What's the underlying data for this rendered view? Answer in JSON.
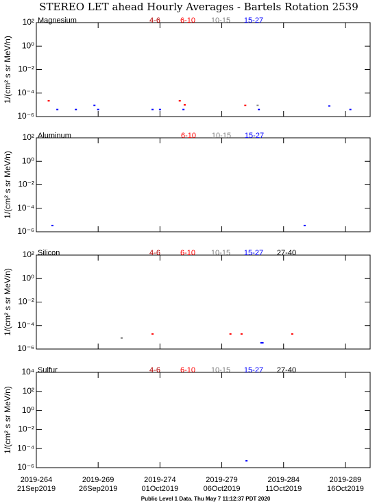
{
  "title": "STEREO LET ahead Hourly Averages - Bartels Rotation 2539",
  "footer": "Public Level 1 Data. Thu May  7 11:12:37 PDT 2020",
  "chart_data": [
    {
      "type": "scatter",
      "title": "Magnesium",
      "ylabel": "1/(cm² s sr MeV/n)",
      "log_y": true,
      "xlim": [
        264,
        291
      ],
      "ylim": [
        1e-06,
        100
      ],
      "yticks": [
        {
          "value": 100,
          "label": "10²"
        },
        {
          "value": 1,
          "label": "10⁰"
        },
        {
          "value": 0.01,
          "label": "10⁻²"
        },
        {
          "value": 0.0001,
          "label": "10⁻⁴"
        },
        {
          "value": 1e-06,
          "label": "10⁻⁶"
        }
      ],
      "series": [
        {
          "name": "4-6",
          "color": "#b00000",
          "x": [],
          "values": []
        },
        {
          "name": "6-10",
          "color": "#ff0000",
          "x": [
            265.0,
            275.6,
            276.0,
            280.9
          ],
          "values": [
            2.2e-05,
            2.2e-05,
            1e-05,
            9e-06
          ]
        },
        {
          "name": "10-15",
          "color": "#808080",
          "x": [
            281.9
          ],
          "values": [
            9e-06
          ]
        },
        {
          "name": "15-27",
          "color": "#0000ff",
          "x": [
            265.7,
            267.2,
            268.7,
            269.0,
            273.4,
            274.0,
            275.9,
            282.0,
            287.7,
            289.4
          ],
          "values": [
            4e-06,
            4e-06,
            9e-06,
            4e-06,
            4e-06,
            4e-06,
            4e-06,
            4e-06,
            8e-06,
            4e-06
          ]
        }
      ]
    },
    {
      "type": "scatter",
      "title": "Aluminum",
      "ylabel": "1/(cm² s sr MeV/n)",
      "log_y": true,
      "xlim": [
        264,
        291
      ],
      "ylim": [
        1e-06,
        100
      ],
      "yticks": [
        {
          "value": 100,
          "label": "10²"
        },
        {
          "value": 1,
          "label": "10⁰"
        },
        {
          "value": 0.01,
          "label": "10⁻²"
        },
        {
          "value": 0.0001,
          "label": "10⁻⁴"
        },
        {
          "value": 1e-06,
          "label": "10⁻⁶"
        }
      ],
      "series": [
        {
          "name": "6-10",
          "color": "#ff0000",
          "x": [],
          "values": []
        },
        {
          "name": "10-15",
          "color": "#808080",
          "x": [],
          "values": []
        },
        {
          "name": "15-27",
          "color": "#0000ff",
          "x": [
            265.3,
            285.7
          ],
          "values": [
            3.4e-06,
            3.4e-06
          ]
        }
      ]
    },
    {
      "type": "scatter",
      "title": "Silicon",
      "ylabel": "1/(cm² s sr MeV/n)",
      "log_y": true,
      "xlim": [
        264,
        291
      ],
      "ylim": [
        1e-06,
        100
      ],
      "yticks": [
        {
          "value": 100,
          "label": "10²"
        },
        {
          "value": 1,
          "label": "10⁰"
        },
        {
          "value": 0.01,
          "label": "10⁻²"
        },
        {
          "value": 0.0001,
          "label": "10⁻⁴"
        },
        {
          "value": 1e-06,
          "label": "10⁻⁶"
        }
      ],
      "series": [
        {
          "name": "4-6",
          "color": "#b00000",
          "x": [],
          "values": []
        },
        {
          "name": "6-10",
          "color": "#ff0000",
          "x": [
            273.4,
            279.7,
            280.6,
            284.7
          ],
          "values": [
            1.9e-05,
            1.9e-05,
            1.9e-05,
            1.9e-05
          ]
        },
        {
          "name": "10-15",
          "color": "#808080",
          "x": [
            270.9
          ],
          "values": [
            8.7e-06
          ]
        },
        {
          "name": "15-27",
          "color": "#0000ff",
          "x": [
            282.2,
            282.3
          ],
          "values": [
            3.4e-06,
            3.4e-06
          ]
        },
        {
          "name": "27-40",
          "color": "#000000",
          "x": [],
          "values": []
        }
      ]
    },
    {
      "type": "scatter",
      "title": "Sulfur",
      "ylabel": "1/(cm² s sr MeV/n)",
      "log_y": true,
      "xlim": [
        264,
        291
      ],
      "ylim": [
        1e-06,
        10000
      ],
      "yticks": [
        {
          "value": 10000,
          "label": "10⁴"
        },
        {
          "value": 100,
          "label": "10²"
        },
        {
          "value": 1,
          "label": "10⁰"
        },
        {
          "value": 0.01,
          "label": "10⁻²"
        },
        {
          "value": 0.0001,
          "label": "10⁻⁴"
        },
        {
          "value": 1e-06,
          "label": "10⁻⁶"
        }
      ],
      "xticks": [
        {
          "value": 264,
          "label": [
            "2019-264",
            "21Sep2019"
          ]
        },
        {
          "value": 269,
          "label": [
            "2019-269",
            "26Sep2019"
          ]
        },
        {
          "value": 274,
          "label": [
            "2019-274",
            "01Oct2019"
          ]
        },
        {
          "value": 279,
          "label": [
            "2019-279",
            "06Oct2019"
          ]
        },
        {
          "value": 284,
          "label": [
            "2019-284",
            "11Oct2019"
          ]
        },
        {
          "value": 289,
          "label": [
            "2019-289",
            "16Oct2019"
          ]
        }
      ],
      "series": [
        {
          "name": "4-6",
          "color": "#b00000",
          "x": [],
          "values": []
        },
        {
          "name": "6-10",
          "color": "#ff0000",
          "x": [],
          "values": []
        },
        {
          "name": "10-15",
          "color": "#808080",
          "x": [],
          "values": []
        },
        {
          "name": "15-27",
          "color": "#0000ff",
          "x": [
            281.0
          ],
          "values": [
            5.2e-06
          ]
        },
        {
          "name": "27-40",
          "color": "#000000",
          "x": [],
          "values": []
        }
      ]
    }
  ]
}
